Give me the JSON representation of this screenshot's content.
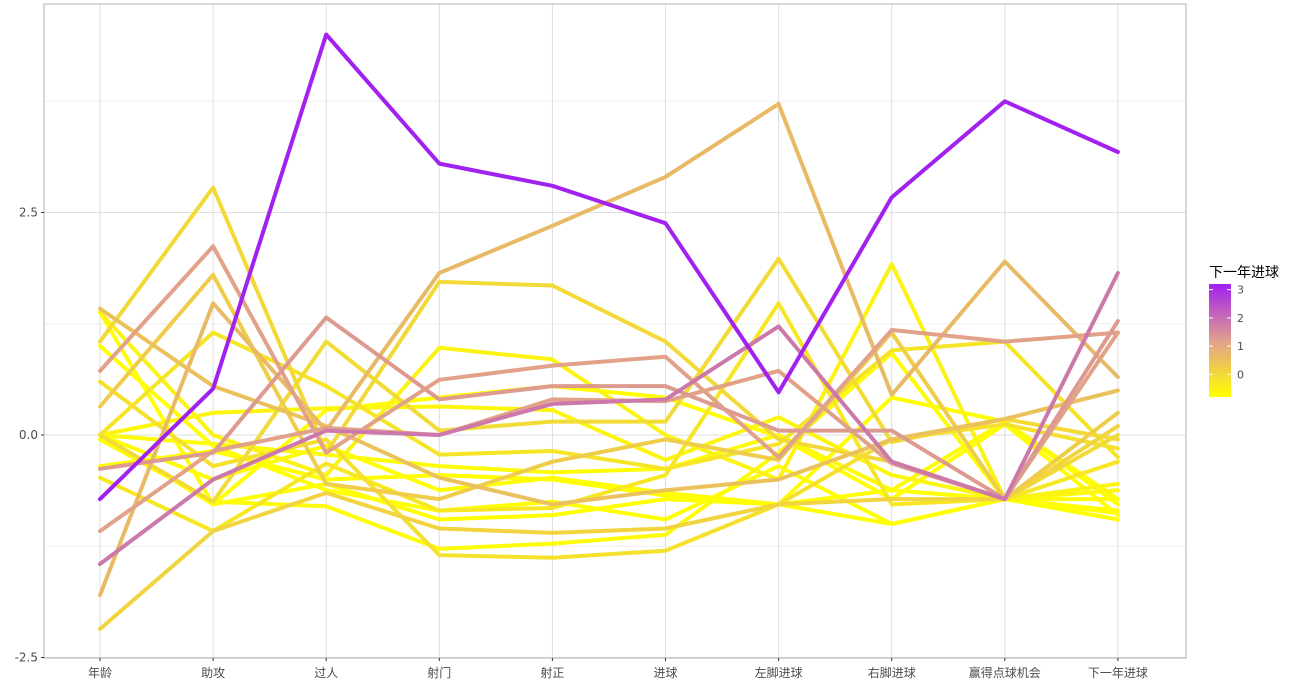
{
  "chart_data": {
    "type": "line",
    "subtype": "parallel-coordinates",
    "categories": [
      "年龄",
      "助攻",
      "过人",
      "射门",
      "射正",
      "进球",
      "左脚进球",
      "右脚进球",
      "赢得点球机会",
      "下一年进球"
    ],
    "y_ticks": [
      {
        "value": -2.5,
        "label": "-2.5"
      },
      {
        "value": 0,
        "label": "0.0"
      },
      {
        "value": 2.5,
        "label": "2.5"
      }
    ],
    "ylim": [
      -2.5,
      5.0
    ],
    "grid": true,
    "legend": {
      "title": "下一年进球",
      "position": "right",
      "ticks": [
        {
          "value": 3,
          "label": "3"
        },
        {
          "value": 2,
          "label": "2"
        },
        {
          "value": 1,
          "label": "1"
        },
        {
          "value": 0,
          "label": "0"
        }
      ],
      "range": [
        -0.8,
        3.2
      ],
      "color_low": "#FFFF00",
      "color_mid": "#E0A08C",
      "color_high": "#A020F0"
    },
    "series": [
      {
        "values": [
          -0.72,
          0.52,
          4.5,
          3.05,
          2.8,
          2.38,
          0.48,
          2.67,
          3.75,
          3.18
        ],
        "color_value": 3.18
      },
      {
        "values": [
          -1.45,
          -0.5,
          0.05,
          0.0,
          0.35,
          0.4,
          1.22,
          -0.3,
          -0.72,
          1.82
        ],
        "color_value": 1.82
      },
      {
        "values": [
          0.72,
          2.12,
          -0.2,
          0.62,
          0.78,
          0.88,
          -0.25,
          1.18,
          1.05,
          1.15
        ],
        "color_value": 1.15
      },
      {
        "values": [
          -0.38,
          -0.2,
          1.32,
          0.4,
          0.55,
          0.55,
          0.05,
          0.05,
          -0.72,
          1.28
        ],
        "color_value": 1.28
      },
      {
        "values": [
          -1.08,
          -0.18,
          0.08,
          0.0,
          0.4,
          0.38,
          0.72,
          -0.32,
          -0.72,
          1.15
        ],
        "color_value": 1.15
      },
      {
        "values": [
          -1.8,
          1.48,
          0.05,
          1.82,
          2.35,
          2.9,
          3.72,
          0.45,
          1.95,
          0.65
        ],
        "color_value": 0.65
      },
      {
        "values": [
          1.42,
          0.55,
          0.1,
          -0.48,
          -0.78,
          -0.62,
          -0.5,
          -0.05,
          0.18,
          0.5
        ],
        "color_value": 0.5
      },
      {
        "values": [
          0.32,
          1.8,
          -0.55,
          -0.72,
          -0.3,
          -0.05,
          -0.28,
          1.15,
          -0.72,
          0.25
        ],
        "color_value": 0.25
      },
      {
        "values": [
          -2.18,
          -1.08,
          -0.65,
          -1.05,
          -1.1,
          -1.05,
          -0.78,
          -0.72,
          -0.72,
          0.1
        ],
        "color_value": 0.1
      },
      {
        "values": [
          1.05,
          2.78,
          -0.2,
          1.72,
          1.68,
          1.05,
          -0.05,
          -0.3,
          -0.72,
          0.0
        ],
        "color_value": 0.0
      },
      {
        "values": [
          0.0,
          -0.75,
          1.05,
          0.05,
          0.15,
          0.15,
          1.98,
          -0.08,
          0.18,
          -0.05
        ],
        "color_value": -0.05
      },
      {
        "values": [
          0.0,
          1.15,
          0.55,
          -0.22,
          -0.18,
          -0.38,
          -0.1,
          0.95,
          1.05,
          -0.25
        ],
        "color_value": -0.25
      },
      {
        "values": [
          0.6,
          -0.35,
          -0.05,
          -1.35,
          -1.38,
          -1.3,
          -0.78,
          -0.05,
          0.12,
          -0.15
        ],
        "color_value": -0.15
      },
      {
        "values": [
          -0.48,
          -1.08,
          -0.32,
          -0.85,
          -0.82,
          -0.45,
          1.48,
          -0.78,
          -0.72,
          -0.3
        ],
        "color_value": -0.3
      },
      {
        "values": [
          1.38,
          0.0,
          -0.45,
          0.98,
          0.85,
          0.0,
          -0.5,
          1.92,
          -0.72,
          -0.55
        ],
        "color_value": -0.55
      },
      {
        "values": [
          0.0,
          0.25,
          0.3,
          0.32,
          0.28,
          -0.28,
          0.2,
          -0.45,
          -0.72,
          -0.62
        ],
        "color_value": -0.62
      },
      {
        "values": [
          -0.05,
          -0.75,
          -0.8,
          -1.28,
          -1.22,
          -1.12,
          -0.2,
          0.92,
          -0.72,
          -0.72
        ],
        "color_value": -0.72
      },
      {
        "values": [
          0.0,
          -0.5,
          -0.12,
          -0.62,
          -0.48,
          -0.65,
          -0.78,
          0.42,
          0.15,
          -0.78
        ],
        "color_value": -0.78
      },
      {
        "values": [
          1.0,
          -0.12,
          -0.62,
          -0.85,
          -0.75,
          -0.95,
          -0.35,
          -1.0,
          -0.72,
          -0.85
        ],
        "color_value": -0.85
      },
      {
        "values": [
          0.0,
          -0.78,
          0.28,
          0.42,
          0.55,
          0.42,
          -0.02,
          -0.72,
          0.12,
          -0.9
        ],
        "color_value": -0.9
      },
      {
        "values": [
          1.38,
          -0.78,
          -0.55,
          -0.95,
          -0.9,
          -0.72,
          -0.78,
          -1.0,
          -0.72,
          -0.95
        ],
        "color_value": -0.95
      },
      {
        "values": [
          0.0,
          -0.1,
          -0.22,
          -0.35,
          -0.42,
          -0.38,
          0.0,
          -0.62,
          0.15,
          -0.72
        ],
        "color_value": -0.72
      },
      {
        "values": [
          -0.35,
          -0.18,
          -0.5,
          -0.45,
          -0.5,
          -0.68,
          -0.78,
          -0.62,
          -0.72,
          -0.88
        ],
        "color_value": -0.88
      }
    ]
  }
}
